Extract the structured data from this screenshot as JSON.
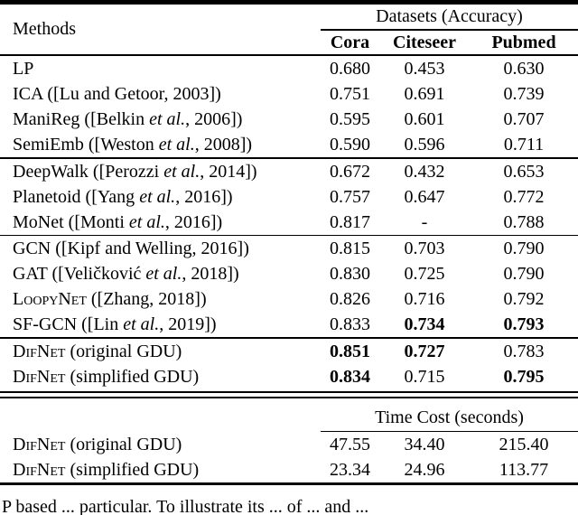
{
  "header": {
    "methods_label": "Methods",
    "datasets_label": "Datasets (Accuracy)",
    "columns": [
      "Cora",
      "Citeseer",
      "Pubmed"
    ]
  },
  "accuracy_sections": [
    {
      "rows": [
        {
          "method": [
            {
              "t": "LP"
            }
          ],
          "values": [
            "0.680",
            "0.453",
            "0.630"
          ],
          "bold": [
            false,
            false,
            false
          ]
        },
        {
          "method": [
            {
              "t": "ICA ([Lu and Getoor, 2003])"
            }
          ],
          "values": [
            "0.751",
            "0.691",
            "0.739"
          ],
          "bold": [
            false,
            false,
            false
          ]
        },
        {
          "method": [
            {
              "t": "ManiReg ([Belkin "
            },
            {
              "t": "et al.",
              "style": "i"
            },
            {
              "t": ", 2006])"
            }
          ],
          "values": [
            "0.595",
            "0.601",
            "0.707"
          ],
          "bold": [
            false,
            false,
            false
          ]
        },
        {
          "method": [
            {
              "t": "SemiEmb ([Weston "
            },
            {
              "t": "et al.",
              "style": "i"
            },
            {
              "t": ", 2008])"
            }
          ],
          "values": [
            "0.590",
            "0.596",
            "0.711"
          ],
          "bold": [
            false,
            false,
            false
          ]
        }
      ]
    },
    {
      "rows": [
        {
          "method": [
            {
              "t": "DeepWalk ([Perozzi "
            },
            {
              "t": "et al.",
              "style": "i"
            },
            {
              "t": ", 2014])"
            }
          ],
          "values": [
            "0.672",
            "0.432",
            "0.653"
          ],
          "bold": [
            false,
            false,
            false
          ]
        },
        {
          "method": [
            {
              "t": "Planetoid ([Yang "
            },
            {
              "t": "et al.",
              "style": "i"
            },
            {
              "t": ", 2016])"
            }
          ],
          "values": [
            "0.757",
            "0.647",
            "0.772"
          ],
          "bold": [
            false,
            false,
            false
          ]
        },
        {
          "method": [
            {
              "t": "MoNet ([Monti "
            },
            {
              "t": "et al.",
              "style": "i"
            },
            {
              "t": ", 2016])"
            }
          ],
          "values": [
            "0.817",
            "-",
            "0.788"
          ],
          "bold": [
            false,
            false,
            false
          ]
        }
      ]
    },
    {
      "rows": [
        {
          "method": [
            {
              "t": "GCN ([Kipf and Welling, 2016])"
            }
          ],
          "values": [
            "0.815",
            "0.703",
            "0.790"
          ],
          "bold": [
            false,
            false,
            false
          ]
        },
        {
          "method": [
            {
              "t": "GAT ([Veličković "
            },
            {
              "t": "et al.",
              "style": "i"
            },
            {
              "t": ", 2018])"
            }
          ],
          "values": [
            "0.830",
            "0.725",
            "0.790"
          ],
          "bold": [
            false,
            false,
            false
          ]
        },
        {
          "method": [
            {
              "t": "LoopyNet",
              "style": "sc"
            },
            {
              "t": " ([Zhang, 2018])"
            }
          ],
          "values": [
            "0.826",
            "0.716",
            "0.792"
          ],
          "bold": [
            false,
            false,
            false
          ]
        },
        {
          "method": [
            {
              "t": "SF-GCN ([Lin "
            },
            {
              "t": "et al.",
              "style": "i"
            },
            {
              "t": ", 2019])"
            }
          ],
          "values": [
            "0.833",
            "0.734",
            "0.793"
          ],
          "bold": [
            false,
            true,
            true
          ]
        }
      ]
    },
    {
      "rows": [
        {
          "method": [
            {
              "t": "DifNet",
              "style": "sc"
            },
            {
              "t": " (original GDU)"
            }
          ],
          "values": [
            "0.851",
            "0.727",
            "0.783"
          ],
          "bold": [
            true,
            true,
            false
          ]
        },
        {
          "method": [
            {
              "t": "DifNet",
              "style": "sc"
            },
            {
              "t": " (simplified GDU)"
            }
          ],
          "values": [
            "0.834",
            "0.715",
            "0.795"
          ],
          "bold": [
            true,
            false,
            true
          ]
        }
      ]
    }
  ],
  "time_section": {
    "label": "Time Cost (seconds)",
    "rows": [
      {
        "method": [
          {
            "t": "DifNet",
            "style": "sc"
          },
          {
            "t": " (original GDU)"
          }
        ],
        "values": [
          "47.55",
          "34.40",
          "215.40"
        ],
        "bold": [
          false,
          false,
          false
        ]
      },
      {
        "method": [
          {
            "t": "DifNet",
            "style": "sc"
          },
          {
            "t": " (simplified GDU)"
          }
        ],
        "values": [
          "23.34",
          "24.96",
          "113.77"
        ],
        "bold": [
          false,
          false,
          false
        ]
      }
    ]
  },
  "caption_fragment": "P based ... particular.  To illustrate its ... of ... and ..."
}
